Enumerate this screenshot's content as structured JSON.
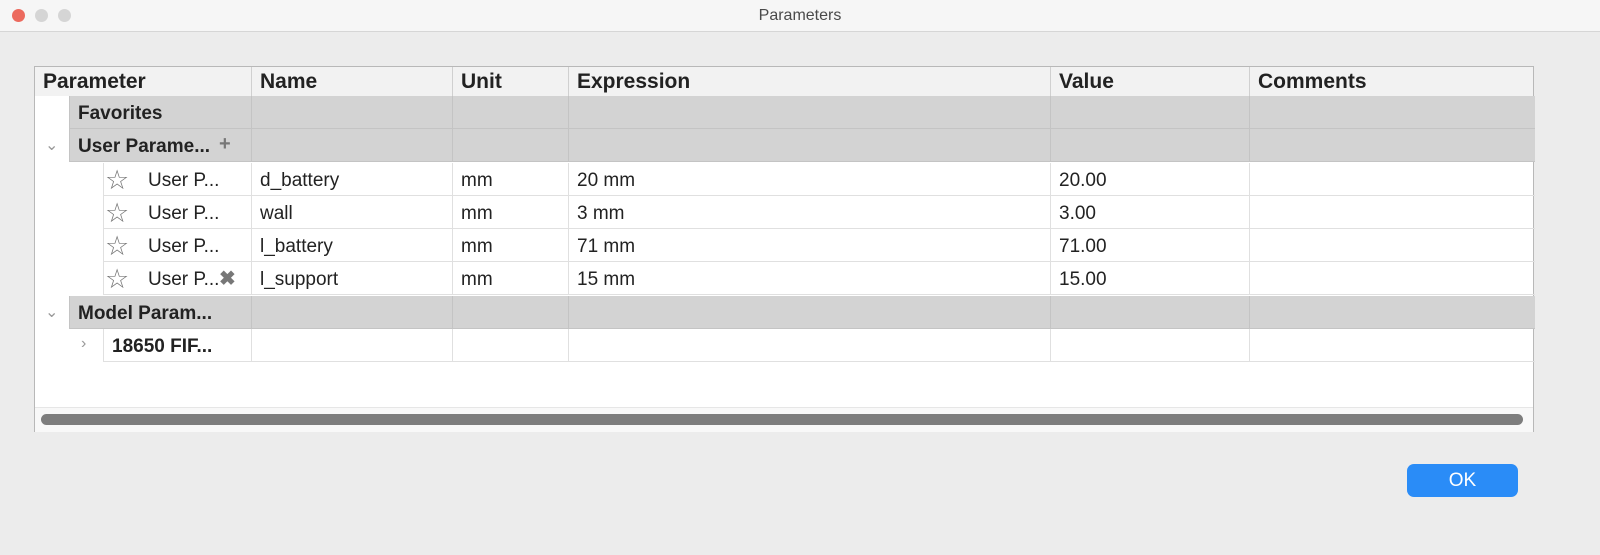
{
  "window": {
    "title": "Parameters"
  },
  "table": {
    "columns": [
      "Parameter",
      "Name",
      "Unit",
      "Expression",
      "Value",
      "Comments"
    ],
    "favorites": "Favorites",
    "user_group": "User Parame...",
    "user_rows": [
      {
        "parameter": "User P...",
        "name": "d_battery",
        "unit": "mm",
        "expression": "20 mm",
        "value": "20.00",
        "comments": ""
      },
      {
        "parameter": "User P...",
        "name": "wall",
        "unit": "mm",
        "expression": "3 mm",
        "value": "3.00",
        "comments": ""
      },
      {
        "parameter": "User P...",
        "name": "l_battery",
        "unit": "mm",
        "expression": "71 mm",
        "value": "71.00",
        "comments": ""
      },
      {
        "parameter": "User P...",
        "name": "l_support",
        "unit": "mm",
        "expression": "15 mm",
        "value": "15.00",
        "comments": ""
      }
    ],
    "model_group": "Model Param...",
    "model_item": "18650 FIF..."
  },
  "buttons": {
    "ok": "OK"
  },
  "colors": {
    "accent": "#2a8cf7",
    "close": "#ec6a5e"
  }
}
